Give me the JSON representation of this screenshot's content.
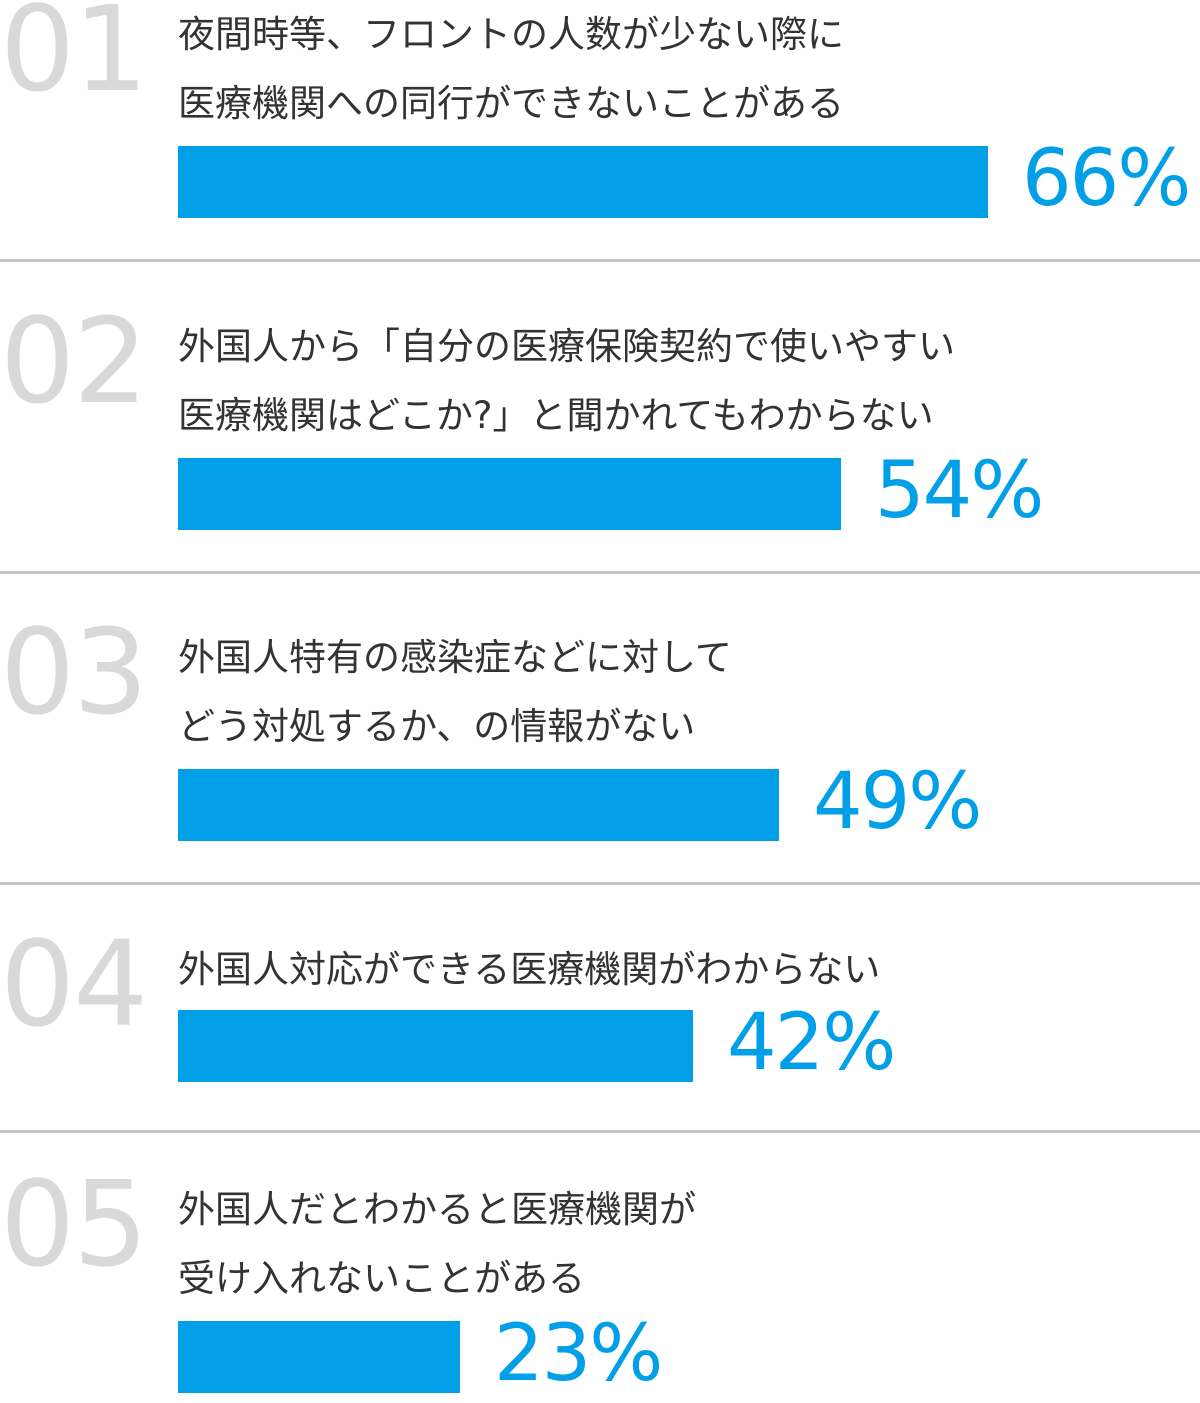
{
  "colors": {
    "bar": "#009fe8",
    "percent_text": "#009fe8",
    "rank_number": "#d9d9d9",
    "label_text": "#333333",
    "divider": "#c4c4c4"
  },
  "chart_data": {
    "type": "bar",
    "orientation": "horizontal",
    "value_unit": "%",
    "xlim": [
      0,
      100
    ],
    "grid": false,
    "legend": "none",
    "items": [
      {
        "rank": "01",
        "label_lines": [
          "夜間時等、フロントの人数が少ない際に",
          "医療機関への同行ができないことがある"
        ],
        "value": 66,
        "value_label": "66%"
      },
      {
        "rank": "02",
        "label_lines": [
          "外国人から「自分の医療保険契約で使いやすい",
          "医療機関はどこか?」と聞かれてもわからない"
        ],
        "value": 54,
        "value_label": "54%"
      },
      {
        "rank": "03",
        "label_lines": [
          "外国人特有の感染症などに対して",
          "どう対処するか、の情報がない"
        ],
        "value": 49,
        "value_label": "49%"
      },
      {
        "rank": "04",
        "label_lines": [
          "外国人対応ができる医療機関がわからない"
        ],
        "value": 42,
        "value_label": "42%"
      },
      {
        "rank": "05",
        "label_lines": [
          "外国人だとわかると医療機関が",
          "受け入れないことがある"
        ],
        "value": 23,
        "value_label": "23%"
      }
    ]
  }
}
